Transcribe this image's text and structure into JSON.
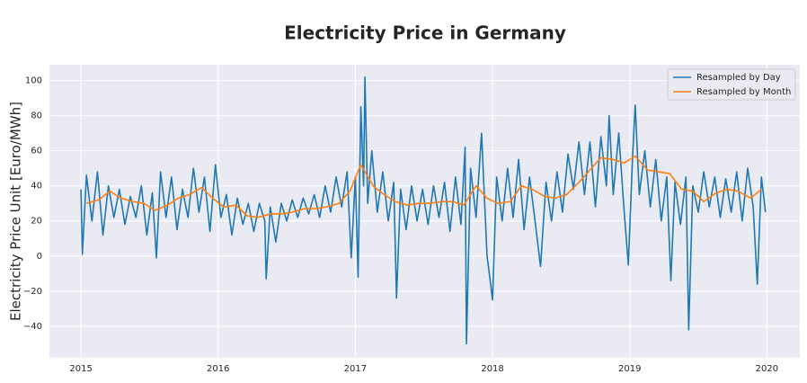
{
  "chart_data": {
    "type": "line",
    "title": "Electricity Price in Germany",
    "ylabel": "Electricity Price Unit [Euro/MWh]",
    "xlim": [
      2014.77,
      2020.24
    ],
    "xticks": [
      2015,
      2016,
      2017,
      2018,
      2019,
      2020
    ],
    "ylim": [
      -58,
      109
    ],
    "yticks": [
      {
        "value": -40,
        "label": "−40"
      },
      {
        "value": -20,
        "label": "−20"
      },
      0,
      20,
      40,
      60,
      80,
      100
    ],
    "grid": true,
    "legend": "upper right",
    "series": [
      {
        "name": "Resampled by Day",
        "color": "#1f77b4",
        "x": [
          2015.0,
          2015.01,
          2015.04,
          2015.08,
          2015.12,
          2015.16,
          2015.2,
          2015.24,
          2015.28,
          2015.32,
          2015.36,
          2015.4,
          2015.44,
          2015.48,
          2015.52,
          2015.55,
          2015.58,
          2015.62,
          2015.66,
          2015.7,
          2015.74,
          2015.78,
          2015.82,
          2015.86,
          2015.9,
          2015.94,
          2015.98,
          2016.02,
          2016.06,
          2016.1,
          2016.14,
          2016.18,
          2016.22,
          2016.26,
          2016.3,
          2016.34,
          2016.35,
          2016.38,
          2016.42,
          2016.46,
          2016.5,
          2016.54,
          2016.58,
          2016.62,
          2016.66,
          2016.7,
          2016.74,
          2016.78,
          2016.82,
          2016.86,
          2016.9,
          2016.94,
          2016.97,
          2017.0,
          2017.02,
          2017.04,
          2017.06,
          2017.07,
          2017.09,
          2017.12,
          2017.16,
          2017.2,
          2017.24,
          2017.28,
          2017.3,
          2017.33,
          2017.37,
          2017.41,
          2017.45,
          2017.49,
          2017.53,
          2017.57,
          2017.61,
          2017.65,
          2017.69,
          2017.73,
          2017.77,
          2017.8,
          2017.81,
          2017.84,
          2017.88,
          2017.92,
          2017.96,
          2017.98,
          2018.0,
          2018.03,
          2018.07,
          2018.11,
          2018.15,
          2018.19,
          2018.23,
          2018.27,
          2018.31,
          2018.35,
          2018.39,
          2018.43,
          2018.47,
          2018.51,
          2018.55,
          2018.59,
          2018.63,
          2018.67,
          2018.71,
          2018.75,
          2018.79,
          2018.83,
          2018.85,
          2018.88,
          2018.92,
          2018.96,
          2018.99,
          2019.02,
          2019.04,
          2019.07,
          2019.11,
          2019.15,
          2019.19,
          2019.23,
          2019.27,
          2019.3,
          2019.33,
          2019.37,
          2019.41,
          2019.43,
          2019.46,
          2019.5,
          2019.54,
          2019.58,
          2019.62,
          2019.66,
          2019.7,
          2019.74,
          2019.78,
          2019.82,
          2019.86,
          2019.9,
          2019.93,
          2019.96,
          2019.99
        ],
        "values": [
          38,
          1,
          46,
          20,
          48,
          12,
          40,
          22,
          38,
          18,
          34,
          22,
          40,
          12,
          36,
          -1,
          48,
          22,
          45,
          15,
          38,
          22,
          50,
          25,
          45,
          14,
          52,
          22,
          35,
          12,
          33,
          18,
          30,
          14,
          30,
          20,
          -13,
          28,
          8,
          30,
          20,
          32,
          22,
          33,
          24,
          35,
          22,
          40,
          25,
          45,
          28,
          48,
          -1,
          45,
          -12,
          85,
          40,
          102,
          30,
          60,
          25,
          48,
          20,
          42,
          -24,
          38,
          15,
          40,
          20,
          38,
          18,
          40,
          22,
          42,
          14,
          45,
          18,
          62,
          -50,
          50,
          22,
          70,
          0,
          -12,
          -25,
          45,
          20,
          50,
          22,
          55,
          15,
          45,
          20,
          -6,
          42,
          20,
          48,
          25,
          58,
          38,
          65,
          35,
          65,
          28,
          68,
          40,
          80,
          35,
          70,
          25,
          -5,
          55,
          86,
          35,
          60,
          28,
          55,
          20,
          45,
          -14,
          42,
          18,
          45,
          -42,
          40,
          25,
          48,
          28,
          45,
          22,
          44,
          25,
          48,
          20,
          50,
          28,
          -16,
          45,
          25
        ]
      },
      {
        "name": "Resampled by Month",
        "color": "#ff7f0e",
        "x": [
          2015.04,
          2015.13,
          2015.21,
          2015.29,
          2015.38,
          2015.46,
          2015.54,
          2015.63,
          2015.71,
          2015.79,
          2015.88,
          2015.96,
          2016.04,
          2016.13,
          2016.21,
          2016.29,
          2016.38,
          2016.46,
          2016.54,
          2016.63,
          2016.71,
          2016.79,
          2016.88,
          2016.96,
          2017.04,
          2017.13,
          2017.21,
          2017.29,
          2017.38,
          2017.46,
          2017.54,
          2017.63,
          2017.71,
          2017.79,
          2017.88,
          2017.96,
          2018.04,
          2018.13,
          2018.21,
          2018.29,
          2018.38,
          2018.46,
          2018.54,
          2018.63,
          2018.71,
          2018.79,
          2018.88,
          2018.96,
          2019.04,
          2019.13,
          2019.21,
          2019.29,
          2019.38,
          2019.46,
          2019.54,
          2019.63,
          2019.71,
          2019.79,
          2019.88,
          2019.96
        ],
        "values": [
          30,
          32,
          37,
          33,
          31,
          30,
          26,
          29,
          33,
          35,
          39,
          33,
          28,
          29,
          23,
          22,
          24,
          24,
          25,
          27,
          27,
          28,
          30,
          37,
          52,
          40,
          35,
          31,
          29,
          30,
          30,
          31,
          31,
          29,
          40,
          33,
          30,
          31,
          40,
          38,
          34,
          33,
          35,
          42,
          49,
          56,
          55,
          53,
          57,
          49,
          48,
          47,
          38,
          37,
          31,
          36,
          38,
          37,
          33,
          38
        ]
      }
    ]
  }
}
